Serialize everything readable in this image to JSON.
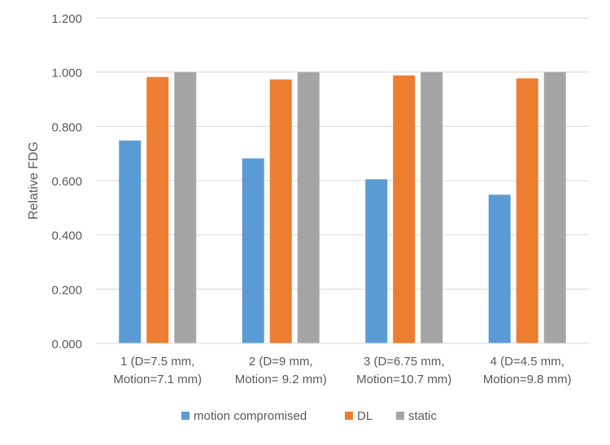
{
  "chart_data": {
    "type": "bar",
    "title": "",
    "xlabel": "",
    "ylabel": "Relative FDG",
    "ylim": [
      0,
      1.2
    ],
    "yticks": [
      0,
      0.2,
      0.4,
      0.6,
      0.8,
      1.0,
      1.2
    ],
    "ytick_labels": [
      "0.000",
      "0.200",
      "0.400",
      "0.600",
      "0.800",
      "1.000",
      "1.200"
    ],
    "grid": true,
    "legend_position": "bottom",
    "categories": [
      [
        "1 (D=7.5 mm,",
        "Motion=7.1 mm)"
      ],
      [
        "2 (D=9 mm,",
        "Motion= 9.2 mm)"
      ],
      [
        "3 (D=6.75 mm,",
        "Motion=10.7 mm)"
      ],
      [
        "4 (D=4.5 mm,",
        "Motion=9.8 mm)"
      ]
    ],
    "series": [
      {
        "name": "motion compromised",
        "color": "#5B9BD5",
        "values": [
          0.748,
          0.682,
          0.605,
          0.548
        ]
      },
      {
        "name": "DL",
        "color": "#ED7D31",
        "values": [
          0.982,
          0.973,
          0.988,
          0.977
        ]
      },
      {
        "name": "static",
        "color": "#A5A5A5",
        "values": [
          1.0,
          1.0,
          1.0,
          1.0
        ]
      }
    ]
  }
}
